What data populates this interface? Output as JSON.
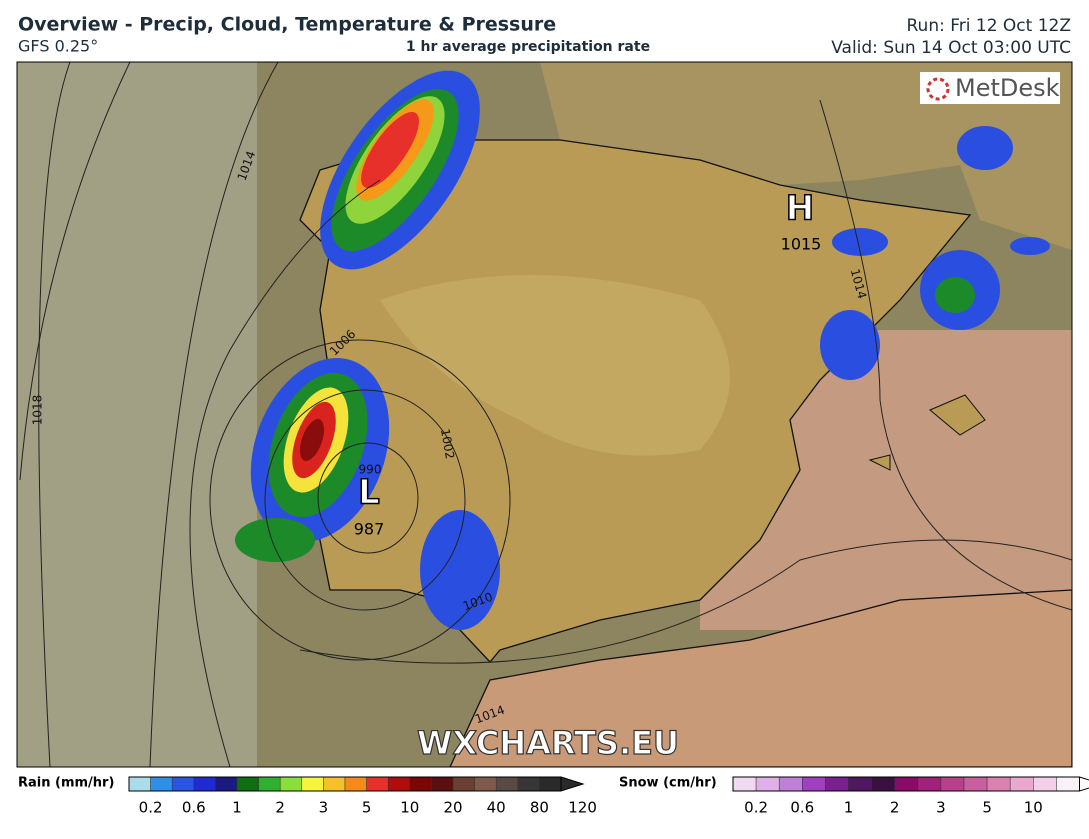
{
  "header": {
    "title": "Overview - Precip, Cloud, Temperature & Pressure",
    "model": "GFS 0.25°",
    "subtitle": "1 hr average precipitation rate",
    "run": "Run: Fri 12 Oct 12Z",
    "valid": "Valid: Sun 14 Oct 03:00 UTC"
  },
  "map": {
    "logo": "MetDesk",
    "watermark": "WXCHARTS.EU",
    "high": {
      "label": "H",
      "pressure": 1015
    },
    "low": {
      "label": "L",
      "pressure": 987
    },
    "isobars": [
      1014,
      1018,
      1006,
      1002,
      990,
      1010,
      1014,
      1014
    ]
  },
  "legend": {
    "rain": {
      "title": "Rain (mm/hr)",
      "ticks": [
        0.2,
        0.6,
        1,
        2,
        3,
        5,
        10,
        20,
        40,
        80,
        120
      ]
    },
    "snow": {
      "title": "Snow (cm/hr)",
      "ticks": [
        0.2,
        0.6,
        1,
        2,
        3,
        5,
        10
      ]
    }
  }
}
